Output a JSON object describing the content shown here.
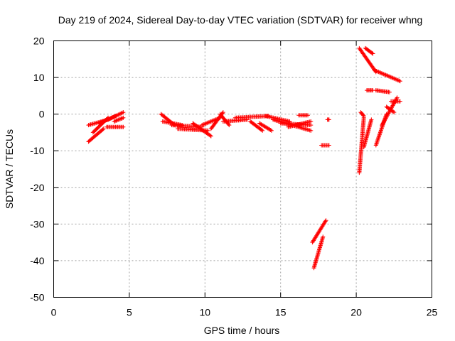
{
  "chart_data": {
    "type": "scatter",
    "title": "Day 219 of 2024, Sidereal Day-to-day VTEC variation (SDTVAR) for receiver whng",
    "xlabel": "GPS time / hours",
    "ylabel": "SDTVAR / TECUs",
    "xlim": [
      0,
      25
    ],
    "ylim": [
      -50,
      20
    ],
    "xticks": [
      0,
      5,
      10,
      15,
      20,
      25
    ],
    "yticks": [
      -50,
      -40,
      -30,
      -20,
      -10,
      0,
      10,
      20
    ],
    "grid": true,
    "marker": "+",
    "color": "#ff0000",
    "segments": [
      {
        "x0": 2.3,
        "y0": -7.5,
        "x1": 3.3,
        "y1": -4.0
      },
      {
        "x0": 2.3,
        "y0": -3.0,
        "x1": 3.6,
        "y1": -1.5
      },
      {
        "x0": 2.6,
        "y0": -5.0,
        "x1": 3.6,
        "y1": -1.0
      },
      {
        "x0": 3.0,
        "y0": -2.5,
        "x1": 4.1,
        "y1": -0.5
      },
      {
        "x0": 3.5,
        "y0": -3.5,
        "x1": 4.6,
        "y1": -3.5
      },
      {
        "x0": 3.6,
        "y0": -1.5,
        "x1": 4.6,
        "y1": 0.5
      },
      {
        "x0": 4.0,
        "y0": -2.0,
        "x1": 4.6,
        "y1": -1.0
      },
      {
        "x0": 7.1,
        "y0": 0.0,
        "x1": 8.0,
        "y1": -3.0
      },
      {
        "x0": 7.2,
        "y0": -2.0,
        "x1": 8.5,
        "y1": -3.0
      },
      {
        "x0": 7.8,
        "y0": -3.0,
        "x1": 9.8,
        "y1": -3.5
      },
      {
        "x0": 8.2,
        "y0": -4.0,
        "x1": 10.2,
        "y1": -4.5
      },
      {
        "x0": 9.2,
        "y0": -2.5,
        "x1": 10.4,
        "y1": -6.0
      },
      {
        "x0": 9.8,
        "y0": -3.0,
        "x1": 11.0,
        "y1": -1.0
      },
      {
        "x0": 10.4,
        "y0": -4.0,
        "x1": 11.2,
        "y1": 0.5
      },
      {
        "x0": 11.0,
        "y0": 0.0,
        "x1": 11.6,
        "y1": -3.0
      },
      {
        "x0": 11.2,
        "y0": -2.0,
        "x1": 12.8,
        "y1": -1.5
      },
      {
        "x0": 12.0,
        "y0": -1.0,
        "x1": 14.2,
        "y1": -0.5
      },
      {
        "x0": 13.0,
        "y0": -2.0,
        "x1": 13.8,
        "y1": -4.5
      },
      {
        "x0": 13.6,
        "y0": -2.5,
        "x1": 14.4,
        "y1": -4.5
      },
      {
        "x0": 14.0,
        "y0": -0.5,
        "x1": 15.6,
        "y1": -2.0
      },
      {
        "x0": 14.5,
        "y0": -1.5,
        "x1": 17.0,
        "y1": -4.5
      },
      {
        "x0": 15.0,
        "y0": -2.5,
        "x1": 17.0,
        "y1": -3.0
      },
      {
        "x0": 15.5,
        "y0": -3.5,
        "x1": 17.0,
        "y1": -2.0
      },
      {
        "x0": 16.2,
        "y0": -0.3,
        "x1": 16.8,
        "y1": -0.3
      },
      {
        "x0": 17.1,
        "y0": -35.0,
        "x1": 18.0,
        "y1": -29.0
      },
      {
        "x0": 17.2,
        "y0": -42.0,
        "x1": 17.8,
        "y1": -33.5
      },
      {
        "x0": 17.7,
        "y0": -8.5,
        "x1": 18.2,
        "y1": -8.5
      },
      {
        "x0": 18.1,
        "y0": -1.5,
        "x1": 18.2,
        "y1": -1.5
      },
      {
        "x0": 20.2,
        "y0": -16.0,
        "x1": 20.5,
        "y1": -1.0
      },
      {
        "x0": 20.2,
        "y0": 18.0,
        "x1": 21.3,
        "y1": 11.5
      },
      {
        "x0": 20.3,
        "y0": 0.5,
        "x1": 20.5,
        "y1": -0.5
      },
      {
        "x0": 20.5,
        "y0": -9.0,
        "x1": 21.0,
        "y1": -1.5
      },
      {
        "x0": 20.6,
        "y0": 18.0,
        "x1": 21.1,
        "y1": 16.5
      },
      {
        "x0": 20.7,
        "y0": 6.5,
        "x1": 21.1,
        "y1": 6.5
      },
      {
        "x0": 21.2,
        "y0": 12.0,
        "x1": 22.9,
        "y1": 9.0
      },
      {
        "x0": 21.3,
        "y0": 6.5,
        "x1": 22.2,
        "y1": 6.0
      },
      {
        "x0": 21.3,
        "y0": -8.5,
        "x1": 22.0,
        "y1": 0.0
      },
      {
        "x0": 21.7,
        "y0": -3.0,
        "x1": 22.7,
        "y1": 4.5
      },
      {
        "x0": 22.0,
        "y0": 2.0,
        "x1": 22.5,
        "y1": 0.5
      },
      {
        "x0": 22.3,
        "y0": 3.5,
        "x1": 22.9,
        "y1": 3.5
      }
    ]
  }
}
